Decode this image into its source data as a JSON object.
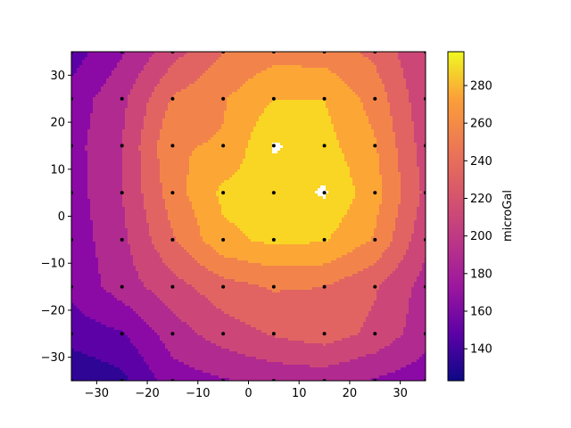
{
  "chart_data": {
    "type": "contourf",
    "title": "",
    "xlabel": "",
    "ylabel": "",
    "xlim": [
      -35,
      35
    ],
    "ylim": [
      -35,
      35
    ],
    "x_ticks": [
      "−30",
      "−20",
      "−10",
      "0",
      "10",
      "20",
      "30"
    ],
    "y_ticks": [
      "−30",
      "−20",
      "−10",
      "0",
      "10",
      "20",
      "30"
    ],
    "colormap": "plasma",
    "colorbar": {
      "label": "microGal",
      "range": [
        123,
        298
      ],
      "ticks": [
        "140",
        "160",
        "180",
        "200",
        "220",
        "240",
        "260",
        "280"
      ],
      "tick_values": [
        140,
        160,
        180,
        200,
        220,
        240,
        260,
        280
      ]
    },
    "levels": [
      123,
      140,
      160,
      180,
      200,
      220,
      240,
      260,
      280,
      298
    ],
    "level_colors": [
      "#2f0596",
      "#5c01a6",
      "#8b0aa5",
      "#b12a90",
      "#cc4778",
      "#e16462",
      "#f2844b",
      "#fca636",
      "#f9d524"
    ],
    "grid_x": [
      -35,
      -25,
      -15,
      -5,
      5,
      15,
      25,
      35
    ],
    "grid_y": [
      -35,
      -25,
      -15,
      -5,
      5,
      15,
      25,
      35
    ],
    "grid_values": [
      [
        120,
        135,
        170,
        178,
        186,
        188,
        178,
        168
      ],
      [
        150,
        158,
        190,
        210,
        222,
        230,
        215,
        188
      ],
      [
        165,
        190,
        212,
        232,
        242,
        240,
        222,
        192
      ],
      [
        168,
        195,
        238,
        275,
        285,
        282,
        258,
        205
      ],
      [
        170,
        200,
        250,
        285,
        290,
        300,
        268,
        215
      ],
      [
        172,
        200,
        258,
        262,
        300,
        288,
        262,
        210
      ],
      [
        168,
        195,
        242,
        258,
        280,
        280,
        252,
        205
      ],
      [
        150,
        178,
        212,
        240,
        252,
        250,
        235,
        200
      ]
    ],
    "grid_grayed_points": [
      [
        -35,
        -35
      ],
      [
        -35,
        -25
      ],
      [
        -35,
        -15
      ],
      [
        -35,
        -5
      ],
      [
        -35,
        5
      ],
      [
        -35,
        15
      ],
      [
        -35,
        25
      ],
      [
        -35,
        35
      ]
    ],
    "grid_grayed_note": ""
  }
}
